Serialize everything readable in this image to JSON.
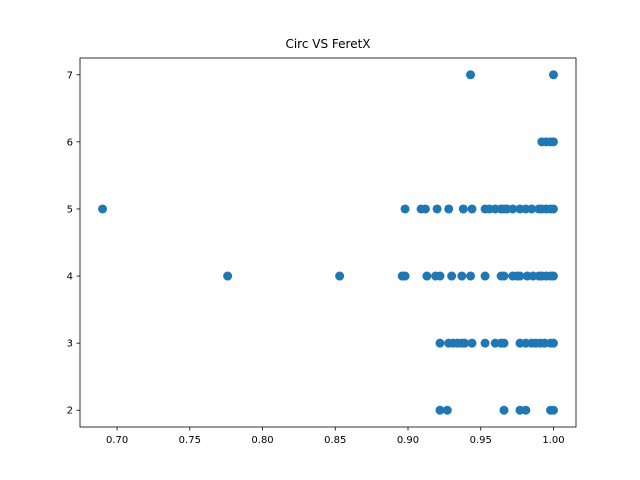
{
  "chart_data": {
    "type": "scatter",
    "title": "Circ VS FeretX",
    "xlabel": "",
    "ylabel": "",
    "xlim": [
      0.6745,
      1.0155
    ],
    "ylim": [
      1.75,
      7.25
    ],
    "x_ticks": [
      0.7,
      0.75,
      0.8,
      0.85,
      0.9,
      0.95,
      1.0
    ],
    "x_tick_labels": [
      "0.70",
      "0.75",
      "0.80",
      "0.85",
      "0.90",
      "0.95",
      "1.00"
    ],
    "y_ticks": [
      2,
      3,
      4,
      5,
      6,
      7
    ],
    "y_tick_labels": [
      "2",
      "3",
      "4",
      "5",
      "6",
      "7"
    ],
    "grid": false,
    "marker_color": "#1f77b4",
    "series": [
      {
        "points": [
          [
            0.943,
            7
          ],
          [
            1.0,
            7
          ],
          [
            0.992,
            6
          ],
          [
            0.995,
            6
          ],
          [
            0.998,
            6
          ],
          [
            1.0,
            6
          ],
          [
            0.69,
            5
          ],
          [
            0.898,
            5
          ],
          [
            0.909,
            5
          ],
          [
            0.912,
            5
          ],
          [
            0.92,
            5
          ],
          [
            0.928,
            5
          ],
          [
            0.938,
            5
          ],
          [
            0.944,
            5
          ],
          [
            0.953,
            5
          ],
          [
            0.956,
            5
          ],
          [
            0.96,
            5
          ],
          [
            0.964,
            5
          ],
          [
            0.966,
            5
          ],
          [
            0.968,
            5
          ],
          [
            0.972,
            5
          ],
          [
            0.977,
            5
          ],
          [
            0.981,
            5
          ],
          [
            0.985,
            5
          ],
          [
            0.99,
            5
          ],
          [
            0.992,
            5
          ],
          [
            0.995,
            5
          ],
          [
            0.998,
            5
          ],
          [
            1.0,
            5
          ],
          [
            0.776,
            4
          ],
          [
            0.853,
            4
          ],
          [
            0.896,
            4
          ],
          [
            0.898,
            4
          ],
          [
            0.913,
            4
          ],
          [
            0.919,
            4
          ],
          [
            0.922,
            4
          ],
          [
            0.93,
            4
          ],
          [
            0.937,
            4
          ],
          [
            0.943,
            4
          ],
          [
            0.953,
            4
          ],
          [
            0.964,
            4
          ],
          [
            0.966,
            4
          ],
          [
            0.972,
            4
          ],
          [
            0.975,
            4
          ],
          [
            0.977,
            4
          ],
          [
            0.982,
            4
          ],
          [
            0.986,
            4
          ],
          [
            0.99,
            4
          ],
          [
            0.992,
            4
          ],
          [
            0.995,
            4
          ],
          [
            0.998,
            4
          ],
          [
            1.0,
            4
          ],
          [
            0.922,
            3
          ],
          [
            0.928,
            3
          ],
          [
            0.931,
            3
          ],
          [
            0.934,
            3
          ],
          [
            0.937,
            3
          ],
          [
            0.939,
            3
          ],
          [
            0.944,
            3
          ],
          [
            0.953,
            3
          ],
          [
            0.96,
            3
          ],
          [
            0.964,
            3
          ],
          [
            0.966,
            3
          ],
          [
            0.977,
            3
          ],
          [
            0.981,
            3
          ],
          [
            0.985,
            3
          ],
          [
            0.988,
            3
          ],
          [
            0.991,
            3
          ],
          [
            0.994,
            3
          ],
          [
            0.998,
            3
          ],
          [
            1.0,
            3
          ],
          [
            0.922,
            2
          ],
          [
            0.927,
            2
          ],
          [
            0.966,
            2
          ],
          [
            0.977,
            2
          ],
          [
            0.981,
            2
          ],
          [
            0.998,
            2
          ],
          [
            1.0,
            2
          ]
        ]
      }
    ]
  }
}
